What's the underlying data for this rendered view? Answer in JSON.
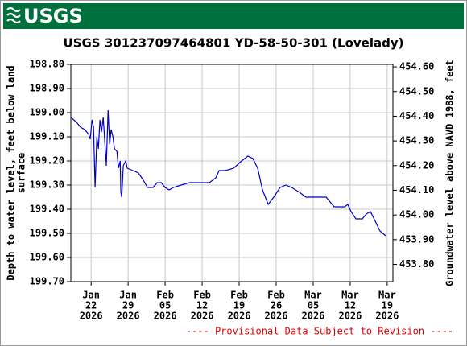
{
  "header": {
    "logo": "USGS"
  },
  "chart_data": {
    "type": "line",
    "title": "USGS 301237097464801 YD-58-50-301 (Lovelady)",
    "ylabel": [
      "Depth to water level, feet below land",
      "surface"
    ],
    "y2label": "Groundwater level above NAVD 1988, feet",
    "annotation": "---- Provisional Data Subject to Revision ----",
    "color": "#0000cc",
    "grid": true,
    "yinverted": true,
    "xlim": [
      "2026-01-18T04:00",
      "2026-03-20T02:00"
    ],
    "xticks": [
      {
        "value": "2026-01-22",
        "label": [
          "Jan",
          "22",
          "2026"
        ]
      },
      {
        "value": "2026-01-29",
        "label": [
          "Jan",
          "29",
          "2026"
        ]
      },
      {
        "value": "2026-02-05",
        "label": [
          "Feb",
          "05",
          "2026"
        ]
      },
      {
        "value": "2026-02-12",
        "label": [
          "Feb",
          "12",
          "2026"
        ]
      },
      {
        "value": "2026-02-19",
        "label": [
          "Feb",
          "19",
          "2026"
        ]
      },
      {
        "value": "2026-02-26",
        "label": [
          "Feb",
          "26",
          "2026"
        ]
      },
      {
        "value": "2026-03-05",
        "label": [
          "Mar",
          "05",
          "2026"
        ]
      },
      {
        "value": "2026-03-12",
        "label": [
          "Mar",
          "12",
          "2026"
        ]
      },
      {
        "value": "2026-03-19",
        "label": [
          "Mar",
          "19",
          "2026"
        ]
      }
    ],
    "ylim": [
      198.8,
      199.7
    ],
    "yticks": [
      {
        "value": 198.8,
        "label": "198.80"
      },
      {
        "value": 198.9,
        "label": "198.90"
      },
      {
        "value": 199.0,
        "label": "199.00"
      },
      {
        "value": 199.1,
        "label": "199.10"
      },
      {
        "value": 199.2,
        "label": "199.20"
      },
      {
        "value": 199.3,
        "label": "199.30"
      },
      {
        "value": 199.4,
        "label": "199.40"
      },
      {
        "value": 199.5,
        "label": "199.50"
      },
      {
        "value": 199.6,
        "label": "199.60"
      },
      {
        "value": 199.7,
        "label": "199.70"
      }
    ],
    "y2lim": [
      453.73,
      454.61
    ],
    "y2ticks": [
      {
        "value": 453.8,
        "label": "453.80"
      },
      {
        "value": 453.9,
        "label": "453.90"
      },
      {
        "value": 454.0,
        "label": "454.00"
      },
      {
        "value": 454.1,
        "label": "454.10"
      },
      {
        "value": 454.2,
        "label": "454.20"
      },
      {
        "value": 454.3,
        "label": "454.30"
      },
      {
        "value": 454.4,
        "label": "454.40"
      },
      {
        "value": 454.5,
        "label": "454.50"
      },
      {
        "value": 454.6,
        "label": "454.60"
      }
    ],
    "x": [
      "2026-01-18T05:00",
      "2026-01-19T06:00",
      "2026-01-20T00:00",
      "2026-01-20T19:00",
      "2026-01-21T13:00",
      "2026-01-21T20:00",
      "2026-01-22T04:00",
      "2026-01-22T11:00",
      "2026-01-22T18:00",
      "2026-01-23T02:00",
      "2026-01-23T09:00",
      "2026-01-23T16:00",
      "2026-01-23T23:00",
      "2026-01-24T07:00",
      "2026-01-24T14:00",
      "2026-01-24T21:00",
      "2026-01-25T05:00",
      "2026-01-25T12:00",
      "2026-01-25T19:00",
      "2026-01-26T03:00",
      "2026-01-26T10:00",
      "2026-01-26T21:00",
      "2026-01-27T04:00",
      "2026-01-27T12:00",
      "2026-01-27T15:00",
      "2026-01-27T19:00",
      "2026-01-28T02:00",
      "2026-01-28T13:00",
      "2026-01-28T20:00",
      "2026-01-29T22:00",
      "2026-01-30T23:00",
      "2026-01-31T21:00",
      "2026-02-01T16:00",
      "2026-02-02T17:00",
      "2026-02-03T12:00",
      "2026-02-04T06:00",
      "2026-02-05T00:00",
      "2026-02-05T18:00",
      "2026-02-06T13:00",
      "2026-02-08T01:00",
      "2026-02-09T14:00",
      "2026-02-11T02:00",
      "2026-02-13T09:00",
      "2026-02-14T14:00",
      "2026-02-15T05:00",
      "2026-02-16T10:00",
      "2026-02-17T23:00",
      "2026-02-19T11:00",
      "2026-02-20T16:00",
      "2026-02-21T14:00",
      "2026-02-22T12:00",
      "2026-02-23T10:00",
      "2026-02-24T12:00",
      "2026-02-25T13:00",
      "2026-02-26T18:00",
      "2026-02-27T20:00",
      "2026-02-28T22:00",
      "2026-03-02T10:00",
      "2026-03-03T15:00",
      "2026-03-05T04:00",
      "2026-03-07T11:00",
      "2026-03-08T23:00",
      "2026-03-10T23:00",
      "2026-03-11T13:00",
      "2026-03-12T04:00",
      "2026-03-13T02:00",
      "2026-03-14T07:00",
      "2026-03-15T01:00",
      "2026-03-15T20:00",
      "2026-03-16T18:00",
      "2026-03-17T15:00",
      "2026-03-18T17:00"
    ],
    "values": [
      199.02,
      199.04,
      199.06,
      199.07,
      199.09,
      199.11,
      199.03,
      199.06,
      199.31,
      199.1,
      199.15,
      199.03,
      199.08,
      199.02,
      199.12,
      199.22,
      198.99,
      199.13,
      199.07,
      199.1,
      199.15,
      199.16,
      199.23,
      199.2,
      199.33,
      199.35,
      199.22,
      199.2,
      199.23,
      199.24,
      199.25,
      199.28,
      199.31,
      199.31,
      199.29,
      199.29,
      199.31,
      199.32,
      199.31,
      199.3,
      199.29,
      199.29,
      199.29,
      199.27,
      199.24,
      199.24,
      199.23,
      199.2,
      199.18,
      199.19,
      199.23,
      199.32,
      199.38,
      199.35,
      199.31,
      199.3,
      199.31,
      199.33,
      199.35,
      199.35,
      199.35,
      199.39,
      199.39,
      199.38,
      199.41,
      199.44,
      199.44,
      199.42,
      199.41,
      199.45,
      199.49,
      199.51
    ]
  }
}
